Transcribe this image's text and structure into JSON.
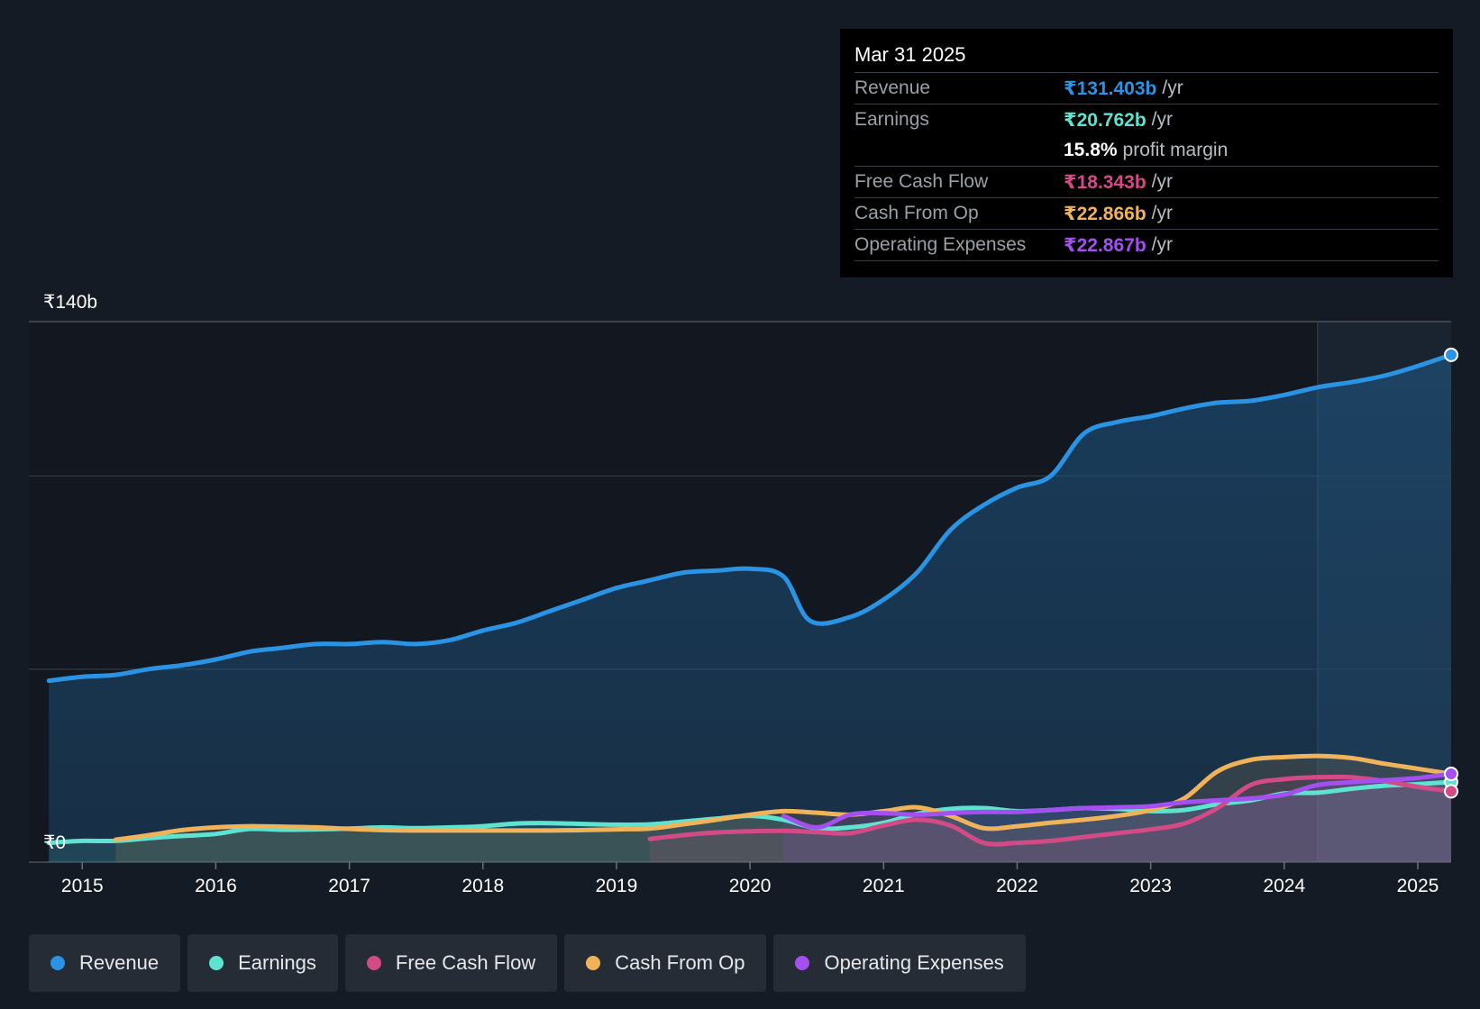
{
  "tooltip": {
    "date": "Mar 31 2025",
    "rows": [
      {
        "label": "Revenue",
        "value": "₹131.403b",
        "unit": "/yr",
        "color": "#2a93e3"
      },
      {
        "label": "Earnings",
        "value": "₹20.762b",
        "unit": "/yr",
        "color": "#5ee3d0"
      },
      {
        "label": "",
        "value": "15.8%",
        "unit": "profit margin",
        "color": "#ffffff"
      },
      {
        "label": "Free Cash Flow",
        "value": "₹18.343b",
        "unit": "/yr",
        "color": "#d24b86"
      },
      {
        "label": "Cash From Op",
        "value": "₹22.866b",
        "unit": "/yr",
        "color": "#f0b35a"
      },
      {
        "label": "Operating Expenses",
        "value": "₹22.867b",
        "unit": "/yr",
        "color": "#a44ff0"
      }
    ]
  },
  "legend": [
    {
      "label": "Revenue",
      "color": "#2a93e3"
    },
    {
      "label": "Earnings",
      "color": "#5ee3d0"
    },
    {
      "label": "Free Cash Flow",
      "color": "#d24b86"
    },
    {
      "label": "Cash From Op",
      "color": "#f0b35a"
    },
    {
      "label": "Operating Expenses",
      "color": "#a44ff0"
    }
  ],
  "chart_data": {
    "type": "area",
    "title": "",
    "xlabel": "",
    "ylabel": "",
    "unit": "₹b",
    "xlim": [
      2014.6,
      2025.25
    ],
    "ylim": [
      0,
      140
    ],
    "y_tick_labels": [
      {
        "value": 140,
        "label": "₹140b"
      },
      {
        "value": 0,
        "label": "₹0"
      }
    ],
    "gridlines": [
      140,
      100,
      50,
      0
    ],
    "x_ticks": [
      2015,
      2016,
      2017,
      2018,
      2019,
      2020,
      2021,
      2022,
      2023,
      2024,
      2025
    ],
    "highlight_start": 2024.25,
    "series": [
      {
        "name": "Revenue",
        "color": "#2a93e3",
        "points": [
          [
            2014.75,
            47
          ],
          [
            2015.0,
            48
          ],
          [
            2015.25,
            48.5
          ],
          [
            2015.5,
            50
          ],
          [
            2015.75,
            51
          ],
          [
            2016.0,
            52.5
          ],
          [
            2016.25,
            54.5
          ],
          [
            2016.5,
            55.5
          ],
          [
            2016.75,
            56.5
          ],
          [
            2017.0,
            56.5
          ],
          [
            2017.25,
            57
          ],
          [
            2017.5,
            56.5
          ],
          [
            2017.75,
            57.5
          ],
          [
            2018.0,
            60
          ],
          [
            2018.25,
            62
          ],
          [
            2018.5,
            65
          ],
          [
            2018.75,
            68
          ],
          [
            2019.0,
            71
          ],
          [
            2019.25,
            73
          ],
          [
            2019.5,
            75
          ],
          [
            2019.75,
            75.5
          ],
          [
            2020.0,
            76
          ],
          [
            2020.25,
            74
          ],
          [
            2020.45,
            62.5
          ],
          [
            2020.75,
            63.5
          ],
          [
            2021.0,
            68
          ],
          [
            2021.25,
            75
          ],
          [
            2021.5,
            86
          ],
          [
            2021.75,
            92.5
          ],
          [
            2022.0,
            97
          ],
          [
            2022.25,
            100
          ],
          [
            2022.5,
            111
          ],
          [
            2022.75,
            114
          ],
          [
            2023.0,
            115.5
          ],
          [
            2023.25,
            117.5
          ],
          [
            2023.5,
            119
          ],
          [
            2023.75,
            119.5
          ],
          [
            2024.0,
            121
          ],
          [
            2024.25,
            123
          ],
          [
            2024.5,
            124.3
          ],
          [
            2024.75,
            126
          ],
          [
            2025.0,
            128.5
          ],
          [
            2025.25,
            131.4
          ]
        ]
      },
      {
        "name": "Earnings",
        "color": "#5ee3d0",
        "points": [
          [
            2014.75,
            5
          ],
          [
            2015.0,
            5.5
          ],
          [
            2015.25,
            5.5
          ],
          [
            2015.5,
            6.2
          ],
          [
            2015.75,
            6.8
          ],
          [
            2016.0,
            7.3
          ],
          [
            2016.25,
            8.6
          ],
          [
            2016.5,
            8.4
          ],
          [
            2016.75,
            8.5
          ],
          [
            2017.0,
            8.7
          ],
          [
            2017.25,
            9
          ],
          [
            2017.5,
            8.8
          ],
          [
            2017.75,
            9
          ],
          [
            2018.0,
            9.3
          ],
          [
            2018.25,
            10
          ],
          [
            2018.5,
            10.1
          ],
          [
            2018.75,
            9.9
          ],
          [
            2019.0,
            9.7
          ],
          [
            2019.25,
            9.8
          ],
          [
            2019.5,
            10.5
          ],
          [
            2019.75,
            11.3
          ],
          [
            2020.0,
            12
          ],
          [
            2020.25,
            11
          ],
          [
            2020.5,
            8.8
          ],
          [
            2020.75,
            9
          ],
          [
            2021.0,
            10.2
          ],
          [
            2021.25,
            12.5
          ],
          [
            2021.5,
            13.8
          ],
          [
            2021.75,
            14
          ],
          [
            2022.0,
            13.2
          ],
          [
            2022.25,
            13.5
          ],
          [
            2022.5,
            14
          ],
          [
            2022.75,
            13.8
          ],
          [
            2023.0,
            13.2
          ],
          [
            2023.25,
            13.5
          ],
          [
            2023.5,
            15
          ],
          [
            2023.75,
            16
          ],
          [
            2024.0,
            17.8
          ],
          [
            2024.25,
            18
          ],
          [
            2024.5,
            19
          ],
          [
            2024.75,
            19.8
          ],
          [
            2025.0,
            20.2
          ],
          [
            2025.25,
            20.762
          ]
        ]
      },
      {
        "name": "Free Cash Flow",
        "color": "#d24b86",
        "points": [
          [
            2019.25,
            6
          ],
          [
            2019.5,
            7
          ],
          [
            2019.75,
            7.7
          ],
          [
            2020.0,
            8
          ],
          [
            2020.25,
            8.1
          ],
          [
            2020.5,
            7.8
          ],
          [
            2020.75,
            7.5
          ],
          [
            2021.0,
            9.5
          ],
          [
            2021.25,
            11
          ],
          [
            2021.5,
            9.5
          ],
          [
            2021.75,
            5
          ],
          [
            2022.0,
            5
          ],
          [
            2022.25,
            5.5
          ],
          [
            2022.5,
            6.5
          ],
          [
            2022.75,
            7.5
          ],
          [
            2023.0,
            8.5
          ],
          [
            2023.25,
            10
          ],
          [
            2023.5,
            14
          ],
          [
            2023.75,
            20
          ],
          [
            2024.0,
            21.5
          ],
          [
            2024.25,
            22
          ],
          [
            2024.5,
            22
          ],
          [
            2024.75,
            21
          ],
          [
            2025.0,
            19.5
          ],
          [
            2025.25,
            18.343
          ]
        ]
      },
      {
        "name": "Cash From Op",
        "color": "#f0b35a",
        "points": [
          [
            2015.25,
            5.8
          ],
          [
            2015.5,
            7
          ],
          [
            2015.75,
            8.3
          ],
          [
            2016.0,
            9
          ],
          [
            2016.25,
            9.3
          ],
          [
            2016.5,
            9.2
          ],
          [
            2016.75,
            9
          ],
          [
            2017.0,
            8.6
          ],
          [
            2017.25,
            8.3
          ],
          [
            2017.5,
            8.2
          ],
          [
            2017.75,
            8.2
          ],
          [
            2018.0,
            8.2
          ],
          [
            2018.25,
            8.2
          ],
          [
            2018.5,
            8.2
          ],
          [
            2018.75,
            8.3
          ],
          [
            2019.0,
            8.5
          ],
          [
            2019.25,
            8.7
          ],
          [
            2019.5,
            9.8
          ],
          [
            2019.75,
            11
          ],
          [
            2020.0,
            12.3
          ],
          [
            2020.25,
            13.2
          ],
          [
            2020.5,
            12.8
          ],
          [
            2020.75,
            12.3
          ],
          [
            2021.0,
            13.2
          ],
          [
            2021.25,
            14.2
          ],
          [
            2021.5,
            12
          ],
          [
            2021.75,
            8.8
          ],
          [
            2022.0,
            9.3
          ],
          [
            2022.25,
            10.2
          ],
          [
            2022.5,
            11
          ],
          [
            2022.75,
            12
          ],
          [
            2023.0,
            13.5
          ],
          [
            2023.25,
            16.5
          ],
          [
            2023.5,
            23.5
          ],
          [
            2023.75,
            26.5
          ],
          [
            2024.0,
            27.2
          ],
          [
            2024.25,
            27.5
          ],
          [
            2024.5,
            27
          ],
          [
            2024.75,
            25.5
          ],
          [
            2025.0,
            24.2
          ],
          [
            2025.25,
            22.866
          ]
        ]
      },
      {
        "name": "Operating Expenses",
        "color": "#a44ff0",
        "points": [
          [
            2020.25,
            12
          ],
          [
            2020.5,
            9
          ],
          [
            2020.75,
            12.3
          ],
          [
            2021.0,
            12.7
          ],
          [
            2021.25,
            12.3
          ],
          [
            2021.5,
            12.7
          ],
          [
            2021.75,
            13
          ],
          [
            2022.0,
            13
          ],
          [
            2022.25,
            13.5
          ],
          [
            2022.5,
            14
          ],
          [
            2022.75,
            14.2
          ],
          [
            2023.0,
            14.5
          ],
          [
            2023.25,
            15.5
          ],
          [
            2023.5,
            16
          ],
          [
            2023.75,
            16.5
          ],
          [
            2024.0,
            17.5
          ],
          [
            2024.25,
            20
          ],
          [
            2024.5,
            20.7
          ],
          [
            2024.75,
            21.2
          ],
          [
            2025.0,
            21.8
          ],
          [
            2025.25,
            22.867
          ]
        ]
      }
    ]
  }
}
